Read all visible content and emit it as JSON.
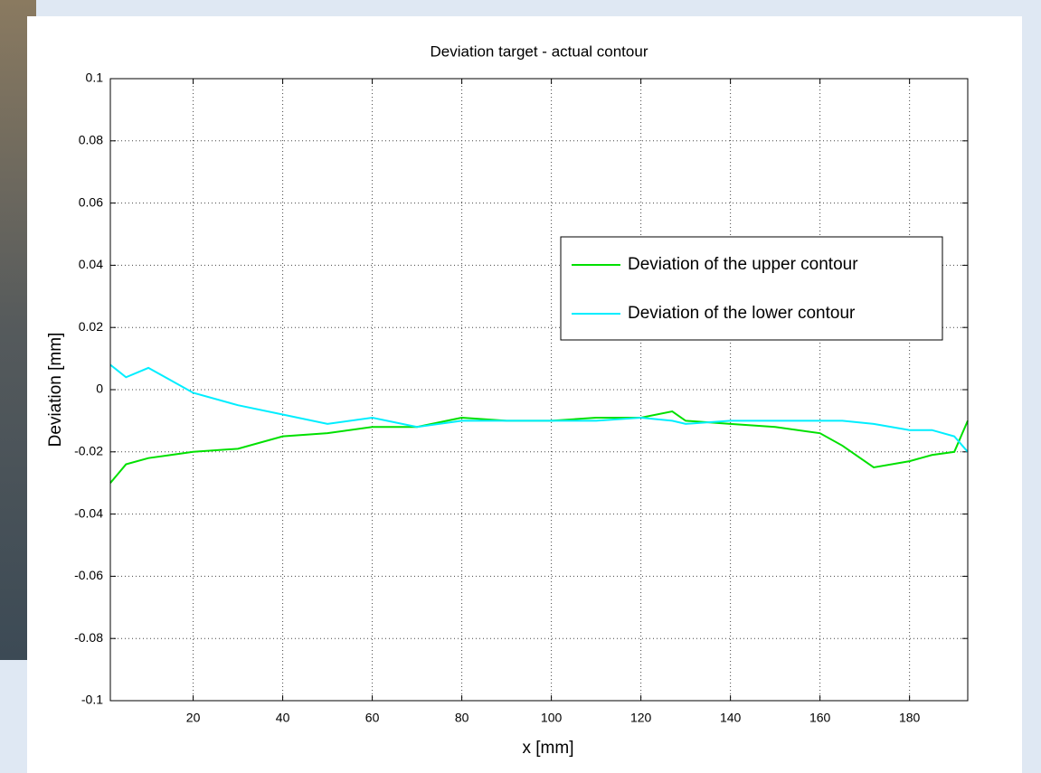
{
  "chart_data": {
    "type": "line",
    "title": "Deviation target - actual contour",
    "x_label": "x [mm]",
    "y_label": "Deviation [mm]",
    "x": [
      1.5,
      5,
      10,
      15,
      20,
      30,
      40,
      50,
      60,
      70,
      80,
      90,
      100,
      110,
      120,
      127,
      130,
      140,
      150,
      160,
      165,
      172,
      180,
      185,
      190,
      193
    ],
    "series": [
      {
        "name": "Deviation of the upper contour",
        "color": "#00e000",
        "values": [
          -0.03,
          -0.024,
          -0.022,
          -0.021,
          -0.02,
          -0.019,
          -0.015,
          -0.014,
          -0.012,
          -0.012,
          -0.009,
          -0.01,
          -0.01,
          -0.009,
          -0.009,
          -0.007,
          -0.01,
          -0.011,
          -0.012,
          -0.014,
          -0.018,
          -0.025,
          -0.023,
          -0.021,
          -0.02,
          -0.01
        ]
      },
      {
        "name": "Deviation of the lower contour",
        "color": "#00eeff",
        "values": [
          0.008,
          0.004,
          0.007,
          0.003,
          -0.001,
          -0.005,
          -0.008,
          -0.011,
          -0.009,
          -0.012,
          -0.01,
          -0.01,
          -0.01,
          -0.01,
          -0.009,
          -0.01,
          -0.011,
          -0.01,
          -0.01,
          -0.01,
          -0.01,
          -0.011,
          -0.013,
          -0.013,
          -0.015,
          -0.02
        ]
      }
    ],
    "xlim": [
      1.5,
      193
    ],
    "xticks": [
      20,
      40,
      60,
      80,
      100,
      120,
      140,
      160,
      180
    ],
    "ylim": [
      -0.1,
      0.1
    ],
    "yticks": [
      0.1,
      0.08,
      0.06,
      0.04,
      0.02,
      0,
      -0.02,
      -0.04,
      -0.06,
      -0.08,
      -0.1
    ],
    "grid": true,
    "legend_position": "right"
  }
}
